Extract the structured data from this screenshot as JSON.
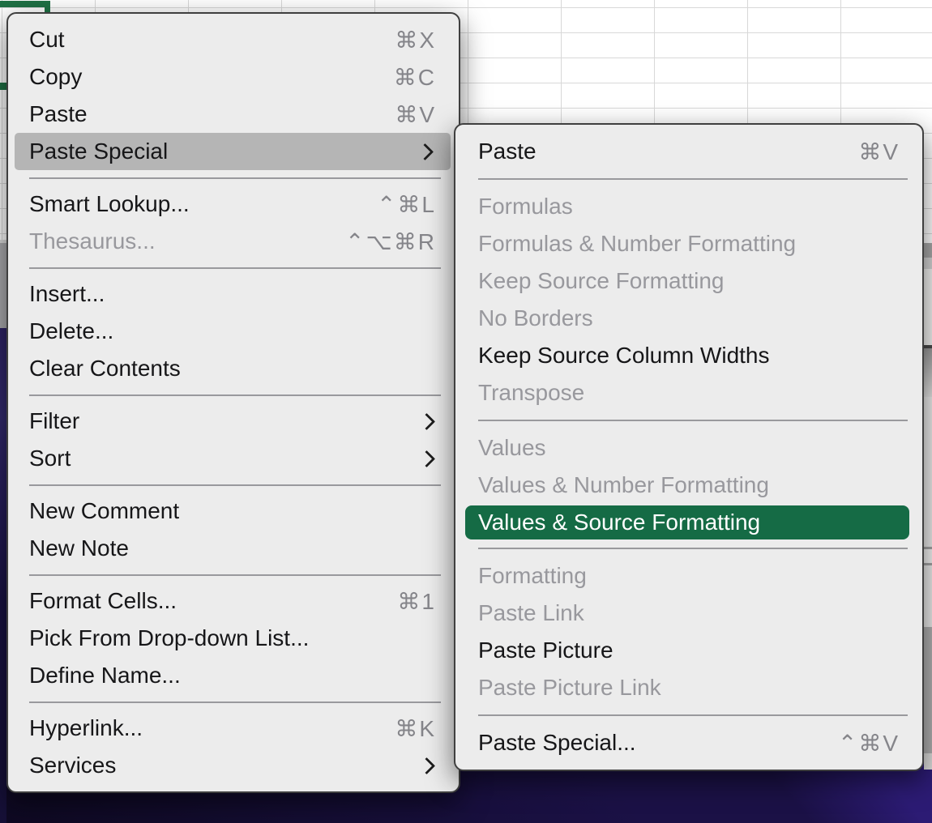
{
  "colors": {
    "menu_bg": "#ececec",
    "menu_border": "#3f3f3f",
    "text": "#161618",
    "disabled_text": "#98989d",
    "shortcut_text": "#85858a",
    "highlight_gray": "#b5b5b5",
    "highlight_green": "#156b45",
    "highlight_green_text": "#ffffff",
    "selection_green": "#1f7145",
    "gridline": "#d8d8d8",
    "wallpaper_dark": "#1b1146",
    "wallpaper_purple": "#2c1b74"
  },
  "menus": [
    {
      "name": "context-menu",
      "items": [
        {
          "id": "cut",
          "label": "Cut",
          "shortcut": "⌘X",
          "enabled": true
        },
        {
          "id": "copy",
          "label": "Copy",
          "shortcut": "⌘C",
          "enabled": true
        },
        {
          "id": "paste",
          "label": "Paste",
          "shortcut": "⌘V",
          "enabled": true
        },
        {
          "id": "paste-special",
          "label": "Paste Special",
          "chevron": true,
          "enabled": true,
          "highlight": "gray"
        },
        {
          "type": "separator"
        },
        {
          "id": "smart-lookup",
          "label": "Smart Lookup...",
          "shortcut": "⌃⌘L",
          "enabled": true
        },
        {
          "id": "thesaurus",
          "label": "Thesaurus...",
          "shortcut": "⌃⌥⌘R",
          "enabled": false
        },
        {
          "type": "separator"
        },
        {
          "id": "insert",
          "label": "Insert...",
          "enabled": true
        },
        {
          "id": "delete",
          "label": "Delete...",
          "enabled": true
        },
        {
          "id": "clear-contents",
          "label": "Clear Contents",
          "enabled": true
        },
        {
          "type": "separator"
        },
        {
          "id": "filter",
          "label": "Filter",
          "chevron": true,
          "enabled": true
        },
        {
          "id": "sort",
          "label": "Sort",
          "chevron": true,
          "enabled": true
        },
        {
          "type": "separator"
        },
        {
          "id": "new-comment",
          "label": "New Comment",
          "enabled": true
        },
        {
          "id": "new-note",
          "label": "New Note",
          "enabled": true
        },
        {
          "type": "separator"
        },
        {
          "id": "format-cells",
          "label": "Format Cells...",
          "shortcut": "⌘1",
          "enabled": true
        },
        {
          "id": "pick-from-drop-down-list",
          "label": "Pick From Drop-down List...",
          "enabled": true
        },
        {
          "id": "define-name",
          "label": "Define Name...",
          "enabled": true
        },
        {
          "type": "separator"
        },
        {
          "id": "hyperlink",
          "label": "Hyperlink...",
          "shortcut": "⌘K",
          "enabled": true
        },
        {
          "id": "services",
          "label": "Services",
          "chevron": true,
          "enabled": true
        }
      ]
    },
    {
      "name": "paste-special-submenu",
      "items": [
        {
          "id": "paste",
          "label": "Paste",
          "shortcut": "⌘V",
          "enabled": true
        },
        {
          "type": "separator"
        },
        {
          "id": "formulas",
          "label": "Formulas",
          "enabled": false
        },
        {
          "id": "formulas-number-formatting",
          "label": "Formulas & Number Formatting",
          "enabled": false
        },
        {
          "id": "keep-source-formatting",
          "label": "Keep Source Formatting",
          "enabled": false
        },
        {
          "id": "no-borders",
          "label": "No Borders",
          "enabled": false
        },
        {
          "id": "keep-source-column-widths",
          "label": "Keep Source Column Widths",
          "enabled": true
        },
        {
          "id": "transpose",
          "label": "Transpose",
          "enabled": false
        },
        {
          "type": "separator"
        },
        {
          "id": "values",
          "label": "Values",
          "enabled": false
        },
        {
          "id": "values-number-formatting",
          "label": "Values & Number Formatting",
          "enabled": false
        },
        {
          "id": "values-source-formatting",
          "label": "Values & Source Formatting",
          "enabled": true,
          "highlight": "green"
        },
        {
          "type": "separator"
        },
        {
          "id": "formatting",
          "label": "Formatting",
          "enabled": false
        },
        {
          "id": "paste-link",
          "label": "Paste Link",
          "enabled": false
        },
        {
          "id": "paste-picture",
          "label": "Paste Picture",
          "enabled": true
        },
        {
          "id": "paste-picture-link",
          "label": "Paste Picture Link",
          "enabled": false
        },
        {
          "type": "separator"
        },
        {
          "id": "paste-special",
          "label": "Paste Special...",
          "shortcut": "⌃⌘V",
          "enabled": true
        }
      ]
    }
  ]
}
